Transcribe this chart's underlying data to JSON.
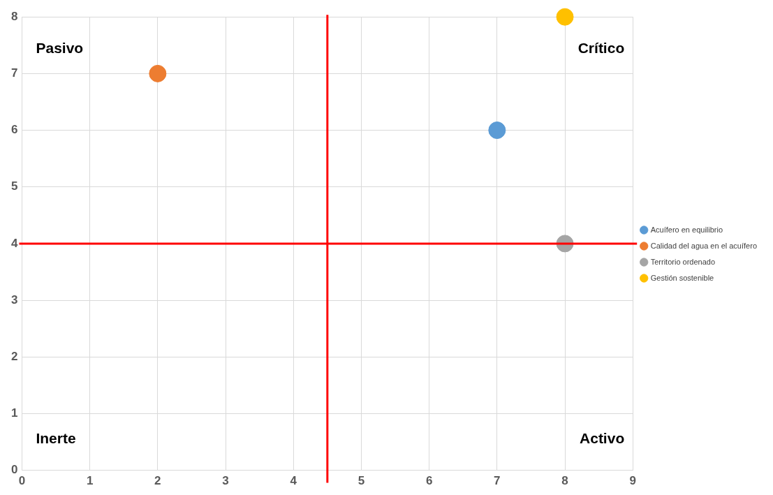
{
  "chart_data": {
    "type": "scatter",
    "series": [
      {
        "name": "Acuífero en equilibrio",
        "color": "#5b9bd5",
        "x": [
          7
        ],
        "values": [
          6
        ]
      },
      {
        "name": "Calidad del agua en el acuífero",
        "color": "#ed7d31",
        "x": [
          2
        ],
        "values": [
          7
        ]
      },
      {
        "name": "Territorio ordenado",
        "color": "#a5a5a5",
        "x": [
          8
        ],
        "values": [
          4
        ]
      },
      {
        "name": "Gestión sostenible",
        "color": "#ffc000",
        "x": [
          8
        ],
        "values": [
          8
        ]
      }
    ],
    "xlim": [
      0,
      9
    ],
    "ylim": [
      0,
      8
    ],
    "xticks": [
      0,
      1,
      2,
      3,
      4,
      5,
      6,
      7,
      8,
      9
    ],
    "yticks": [
      0,
      1,
      2,
      3,
      4,
      5,
      6,
      7,
      8
    ],
    "ref_lines": [
      {
        "axis": "x",
        "value": 4.5,
        "color": "#ff0000"
      },
      {
        "axis": "y",
        "value": 4,
        "color": "#ff0000"
      }
    ],
    "annotations": [
      "Pasivo",
      "Crítico",
      "Inerte",
      "Activo"
    ],
    "grid": true,
    "legend": "right",
    "marker": "circle"
  }
}
